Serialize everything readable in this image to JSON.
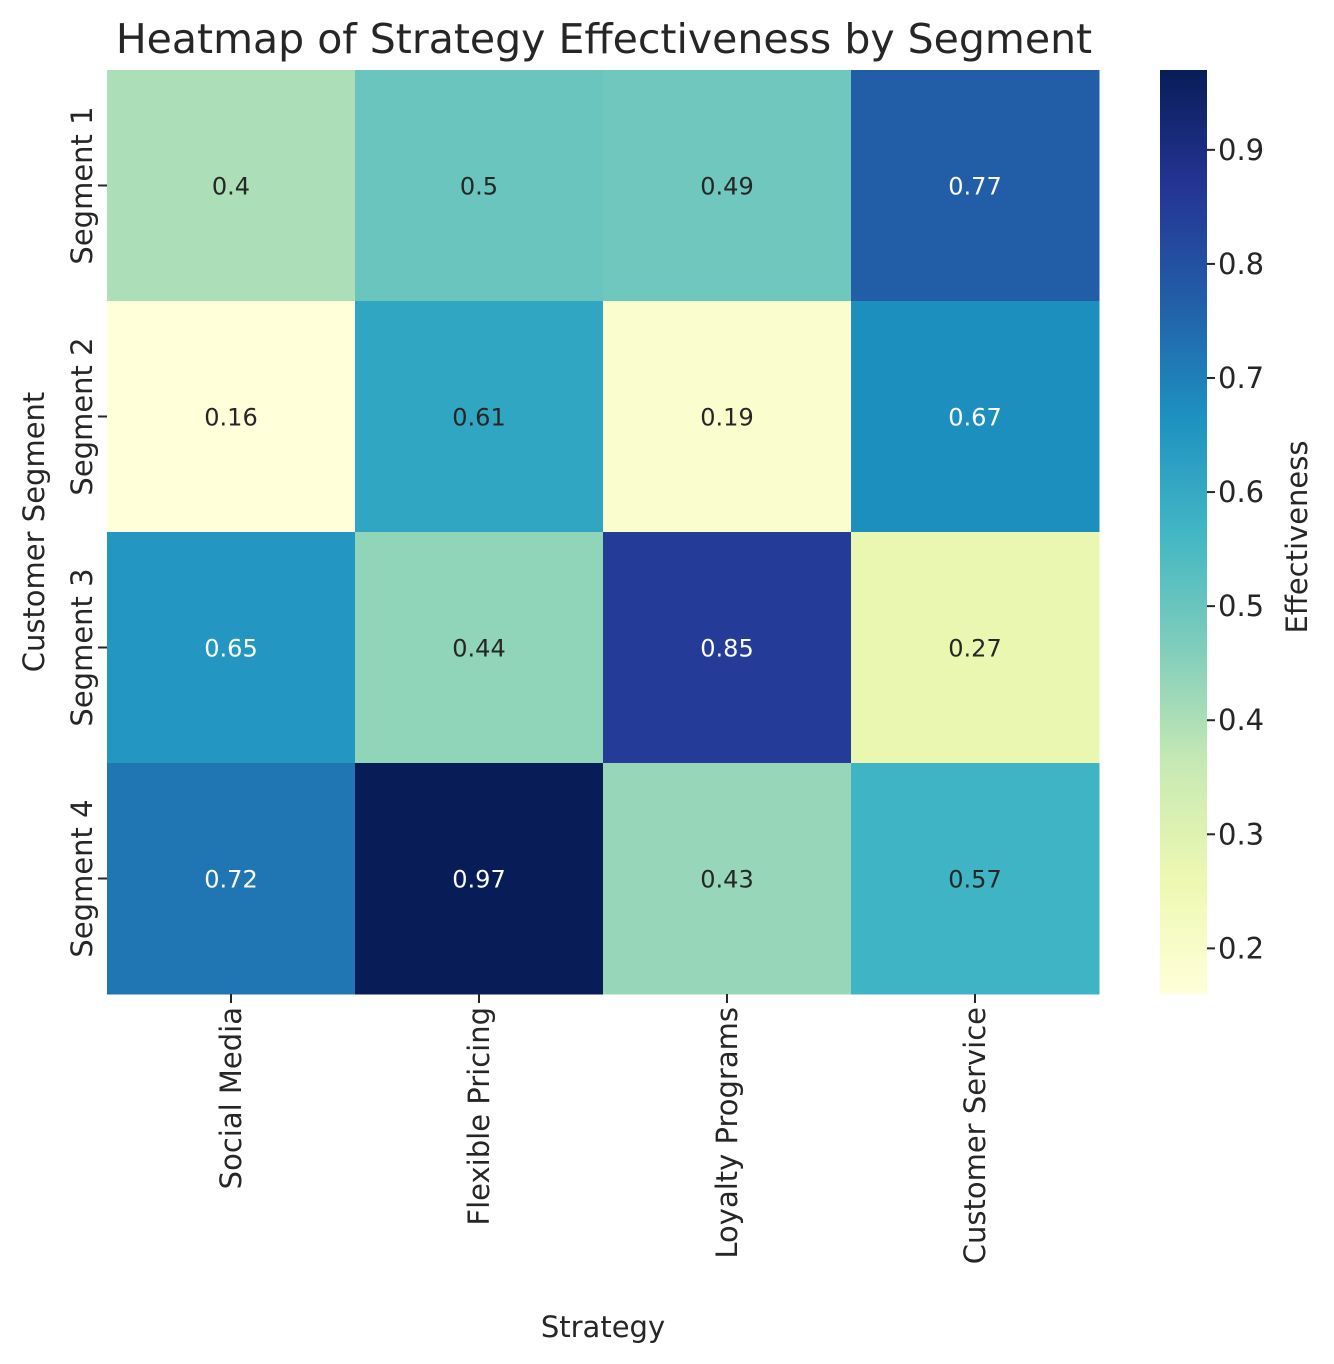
{
  "chart_data": {
    "type": "heatmap",
    "title": "Heatmap of Strategy Effectiveness by Segment",
    "xlabel": "Strategy",
    "ylabel": "Customer Segment",
    "x_categories": [
      "Social Media",
      "Flexible Pricing",
      "Loyalty Programs",
      "Customer Service"
    ],
    "y_categories": [
      "Segment 1",
      "Segment 2",
      "Segment 3",
      "Segment 4"
    ],
    "values": [
      [
        0.4,
        0.5,
        0.49,
        0.77
      ],
      [
        0.16,
        0.61,
        0.19,
        0.67
      ],
      [
        0.65,
        0.44,
        0.85,
        0.27
      ],
      [
        0.72,
        0.97,
        0.43,
        0.57
      ]
    ],
    "value_labels": [
      [
        "0.4",
        "0.5",
        "0.49",
        "0.77"
      ],
      [
        "0.16",
        "0.61",
        "0.19",
        "0.67"
      ],
      [
        "0.65",
        "0.44",
        "0.85",
        "0.27"
      ],
      [
        "0.72",
        "0.97",
        "0.43",
        "0.57"
      ]
    ],
    "colorbar": {
      "label": "Effectiveness",
      "range": [
        0.16,
        0.97
      ],
      "ticks": [
        0.2,
        0.3,
        0.4,
        0.5,
        0.6,
        0.7,
        0.8,
        0.9
      ],
      "tick_labels": [
        "0.2",
        "0.3",
        "0.4",
        "0.5",
        "0.6",
        "0.7",
        "0.8",
        "0.9"
      ]
    },
    "colormap": "YlGnBu",
    "annotation_colors": {
      "light": "#ffffff",
      "dark": "#262626"
    }
  }
}
